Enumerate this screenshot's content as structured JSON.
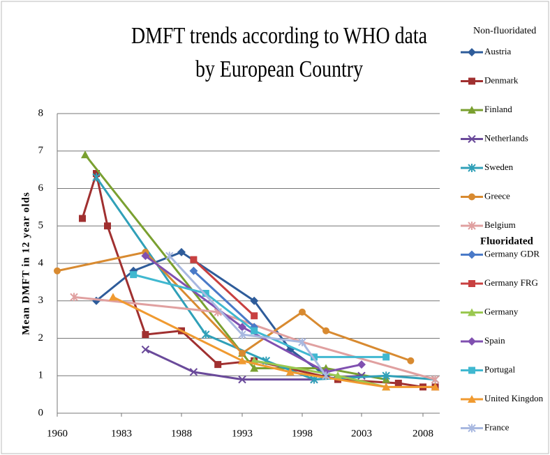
{
  "chart_data": {
    "type": "line",
    "title": "DMFT trends according to WHO data by European Country",
    "y_label": "Mean DMFT in 12 year olds",
    "legend_headers": [
      "Non-fluoridated",
      "Fluoridated"
    ],
    "xlim": [
      1960,
      2010
    ],
    "xticks": [
      1960,
      1983,
      1988,
      1993,
      1998,
      2003,
      2008
    ],
    "ylim": [
      0,
      8
    ],
    "yticks": [
      0,
      1,
      2,
      3,
      4,
      5,
      6,
      7,
      8
    ],
    "grid": true,
    "series": [
      {
        "name": "Austria",
        "color": "#2e5c9a",
        "marker": "diamond",
        "x": [
          1974,
          1984,
          1988,
          1994,
          1997,
          2000
        ],
        "values": [
          3.0,
          3.8,
          4.3,
          3.0,
          1.7,
          1.0
        ]
      },
      {
        "name": "Denmark",
        "color": "#a03030",
        "marker": "square",
        "x": [
          1969,
          1974,
          1978,
          1985,
          1988,
          1991,
          1994,
          2001,
          2006,
          2008,
          2009
        ],
        "values": [
          5.2,
          6.4,
          5.0,
          2.1,
          2.2,
          1.3,
          1.4,
          0.9,
          0.8,
          0.7,
          0.7
        ]
      },
      {
        "name": "Finland",
        "color": "#7aa030",
        "marker": "triangle",
        "x": [
          1970,
          1993,
          1994,
          2000,
          2005
        ],
        "values": [
          6.9,
          1.6,
          1.2,
          1.2,
          0.9
        ]
      },
      {
        "name": "Netherlands",
        "color": "#6a4a9a",
        "marker": "x",
        "x": [
          1985,
          1989,
          1993,
          1999,
          2003
        ],
        "values": [
          1.7,
          1.1,
          0.9,
          0.9,
          1.0
        ]
      },
      {
        "name": "Sweden",
        "color": "#30a0b8",
        "marker": "star",
        "x": [
          1974,
          1990,
          1995,
          1999,
          2005,
          2009
        ],
        "values": [
          6.3,
          2.1,
          1.4,
          0.9,
          1.0,
          0.9
        ]
      },
      {
        "name": "Greece",
        "color": "#d88a30",
        "marker": "circle",
        "x": [
          1960,
          1985,
          1993,
          1998,
          2000,
          2007
        ],
        "values": [
          3.8,
          4.3,
          1.6,
          2.7,
          2.2,
          1.4
        ]
      },
      {
        "name": "Belgium",
        "color": "#e0a0a0",
        "marker": "star",
        "x": [
          1966,
          1991,
          1998,
          2009
        ],
        "values": [
          3.1,
          2.7,
          1.9,
          0.9
        ]
      },
      {
        "name": "Germany GDR",
        "color": "#4a7ac8",
        "marker": "diamond",
        "x": [
          1989,
          1994
        ],
        "values": [
          3.8,
          2.3
        ]
      },
      {
        "name": "Germany FRG",
        "color": "#c84040",
        "marker": "square",
        "x": [
          1989,
          1994
        ],
        "values": [
          4.1,
          2.6
        ]
      },
      {
        "name": "Germany",
        "color": "#9ac850",
        "marker": "triangle",
        "x": [
          1994,
          2001,
          2005
        ],
        "values": [
          1.4,
          1.0,
          0.7
        ]
      },
      {
        "name": "Spain",
        "color": "#8050b0",
        "marker": "diamond",
        "x": [
          1985,
          1993,
          2000,
          2003
        ],
        "values": [
          4.2,
          2.3,
          1.1,
          1.3
        ]
      },
      {
        "name": "Portugal",
        "color": "#40b8d0",
        "marker": "square",
        "x": [
          1984,
          1990,
          1994,
          1999,
          2005
        ],
        "values": [
          3.7,
          3.2,
          2.2,
          1.5,
          1.5
        ]
      },
      {
        "name": "United Kingdon",
        "color": "#f09a30",
        "marker": "triangle",
        "x": [
          1980,
          1993,
          1997,
          2005,
          2009
        ],
        "values": [
          3.1,
          1.4,
          1.1,
          0.7,
          0.7
        ]
      },
      {
        "name": "France",
        "color": "#a8b8e0",
        "marker": "star",
        "x": [
          1987,
          1993,
          1998,
          2000
        ],
        "values": [
          4.2,
          2.1,
          1.9,
          1.0
        ]
      }
    ]
  }
}
